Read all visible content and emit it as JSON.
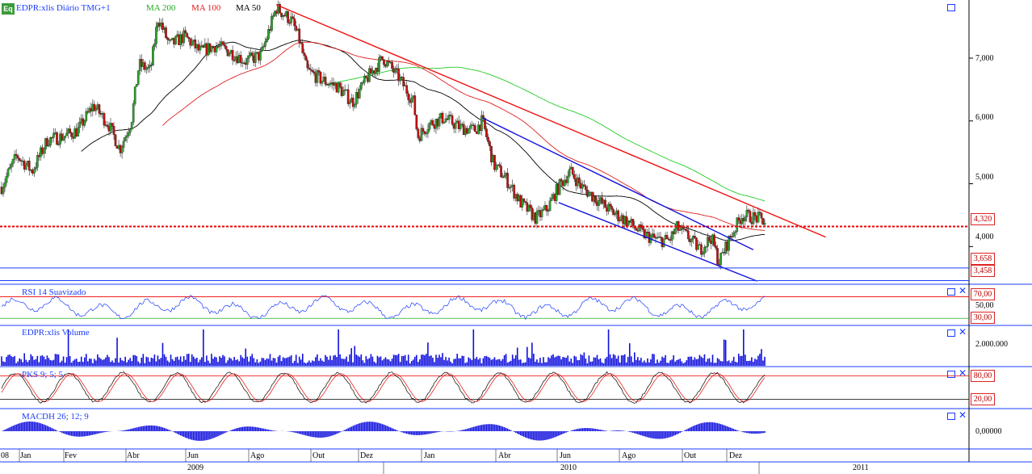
{
  "header": {
    "logo": "Eq",
    "symbol": "EDPR:xlis Diário TMG+1",
    "ma200": "MA 200",
    "ma100": "MA 100",
    "ma50": "MA 50"
  },
  "panels": {
    "rsi": "RSI 14 Suavizado",
    "volume": "EDPR:xlis Volume",
    "pks": "PKS 9; 5; 5",
    "macd": "MACDH 26; 12; 9"
  },
  "price_axis": [
    "7,000",
    "6,000",
    "5,000",
    "4,000"
  ],
  "price_tags": [
    "4,320",
    "3,658",
    "3,458"
  ],
  "rsi_axis": {
    "hi": "70,00",
    "mid": "50,00",
    "lo": "30,00"
  },
  "volume_axis": "2.000.000",
  "pks_axis": {
    "hi": "80,00",
    "lo": "20,00"
  },
  "macd_axis": "0,00000",
  "months": [
    "08",
    "Jan",
    "Fev",
    "Abr",
    "Jun",
    "Ago",
    "Out",
    "Dez",
    "Jan",
    "Abr",
    "Jun",
    "Ago",
    "Out",
    "Dez"
  ],
  "years": [
    "2009",
    "2010",
    "2011"
  ],
  "colors": {
    "ma200": "#22cc22",
    "ma100": "#e02020",
    "ma50": "#000000",
    "trend": "#ee1111",
    "channel": "#1010dd",
    "volume": "#1010dd"
  },
  "chart_data": {
    "type": "candlestick",
    "price_scale": [
      3.4,
      7.9
    ],
    "price_series": [
      {
        "t": 0.0,
        "v": 4.95
      },
      {
        "t": 0.02,
        "v": 5.45
      },
      {
        "t": 0.04,
        "v": 5.2
      },
      {
        "t": 0.06,
        "v": 5.7
      },
      {
        "t": 0.08,
        "v": 5.75
      },
      {
        "t": 0.1,
        "v": 5.85
      },
      {
        "t": 0.12,
        "v": 6.25
      },
      {
        "t": 0.14,
        "v": 5.95
      },
      {
        "t": 0.155,
        "v": 5.55
      },
      {
        "t": 0.17,
        "v": 6.0
      },
      {
        "t": 0.18,
        "v": 6.9
      },
      {
        "t": 0.195,
        "v": 6.8
      },
      {
        "t": 0.205,
        "v": 7.65
      },
      {
        "t": 0.22,
        "v": 7.2
      },
      {
        "t": 0.24,
        "v": 7.35
      },
      {
        "t": 0.26,
        "v": 7.1
      },
      {
        "t": 0.28,
        "v": 7.2
      },
      {
        "t": 0.3,
        "v": 7.1
      },
      {
        "t": 0.32,
        "v": 6.95
      },
      {
        "t": 0.34,
        "v": 7.05
      },
      {
        "t": 0.36,
        "v": 7.8
      },
      {
        "t": 0.38,
        "v": 7.6
      },
      {
        "t": 0.39,
        "v": 7.3
      },
      {
        "t": 0.4,
        "v": 6.8
      },
      {
        "t": 0.42,
        "v": 6.65
      },
      {
        "t": 0.44,
        "v": 6.55
      },
      {
        "t": 0.46,
        "v": 6.3
      },
      {
        "t": 0.48,
        "v": 6.7
      },
      {
        "t": 0.5,
        "v": 7.0
      },
      {
        "t": 0.52,
        "v": 6.7
      },
      {
        "t": 0.54,
        "v": 6.3
      },
      {
        "t": 0.545,
        "v": 5.75
      },
      {
        "t": 0.56,
        "v": 5.95
      },
      {
        "t": 0.58,
        "v": 6.05
      },
      {
        "t": 0.6,
        "v": 5.9
      },
      {
        "t": 0.62,
        "v": 5.85
      },
      {
        "t": 0.63,
        "v": 6.0
      },
      {
        "t": 0.645,
        "v": 5.3
      },
      {
        "t": 0.66,
        "v": 5.1
      },
      {
        "t": 0.68,
        "v": 4.7
      },
      {
        "t": 0.7,
        "v": 4.45
      },
      {
        "t": 0.715,
        "v": 4.6
      },
      {
        "t": 0.73,
        "v": 4.95
      },
      {
        "t": 0.745,
        "v": 5.2
      },
      {
        "t": 0.76,
        "v": 4.95
      },
      {
        "t": 0.78,
        "v": 4.75
      },
      {
        "t": 0.8,
        "v": 4.55
      },
      {
        "t": 0.82,
        "v": 4.4
      },
      {
        "t": 0.84,
        "v": 4.2
      },
      {
        "t": 0.86,
        "v": 4.1
      },
      {
        "t": 0.875,
        "v": 4.1
      },
      {
        "t": 0.885,
        "v": 4.3
      },
      {
        "t": 0.9,
        "v": 4.15
      },
      {
        "t": 0.915,
        "v": 3.95
      },
      {
        "t": 0.93,
        "v": 4.15
      },
      {
        "t": 0.94,
        "v": 3.75
      },
      {
        "t": 0.955,
        "v": 4.15
      },
      {
        "t": 0.97,
        "v": 4.5
      },
      {
        "t": 0.99,
        "v": 4.45
      },
      {
        "t": 1.0,
        "v": 4.4
      }
    ],
    "trend_line": [
      {
        "t": 0.36,
        "v": 7.85
      },
      {
        "t": 1.08,
        "v": 4.15
      }
    ],
    "support_line": 4.32,
    "channel_upper": [
      {
        "t": 0.63,
        "v": 6.05
      },
      {
        "t": 0.985,
        "v": 3.95
      }
    ],
    "channel_lower": [
      {
        "t": 0.73,
        "v": 4.7
      },
      {
        "t": 0.99,
        "v": 3.45
      }
    ],
    "horizontal_levels": [
      3.658,
      3.458
    ],
    "rsi_levels": [
      70,
      50,
      30
    ],
    "pks_levels": [
      80,
      20
    ]
  }
}
